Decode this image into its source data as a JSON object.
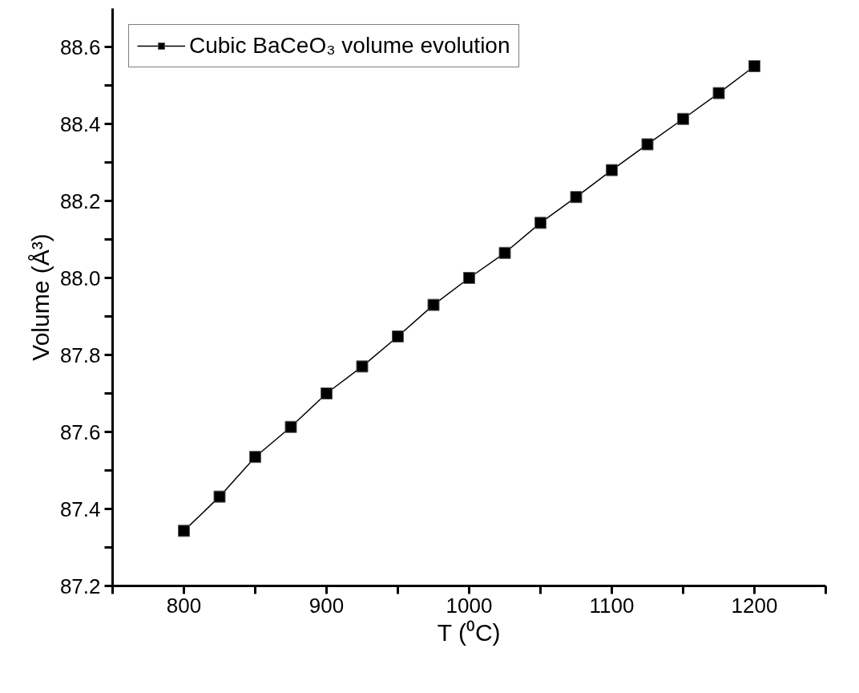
{
  "chart_data": {
    "type": "line",
    "xlabel": "T (⁰C)",
    "ylabel": "Volume (Å³)",
    "x": [
      800,
      825,
      850,
      875,
      900,
      925,
      950,
      975,
      1000,
      1025,
      1050,
      1075,
      1100,
      1125,
      1150,
      1175,
      1200
    ],
    "series": [
      {
        "name": "Cubic BaCeO₃ volume evolution",
        "color": "#000000",
        "values": [
          87.343,
          87.432,
          87.535,
          87.613,
          87.7,
          87.77,
          87.848,
          87.93,
          88.0,
          88.065,
          88.143,
          88.21,
          88.28,
          88.347,
          88.413,
          88.48,
          88.55
        ]
      }
    ],
    "xlim": [
      750,
      1250
    ],
    "xticks": [
      {
        "value": 750,
        "label": null
      },
      800,
      {
        "value": 850,
        "label": null
      },
      900,
      {
        "value": 950,
        "label": null
      },
      1000,
      {
        "value": 1050,
        "label": null
      },
      1100,
      {
        "value": 1150,
        "label": null
      },
      1200,
      {
        "value": 1250,
        "label": null
      }
    ],
    "ylim": [
      87.2,
      88.7
    ],
    "yticks": [
      87.2,
      {
        "value": 87.3,
        "label": null
      },
      87.4,
      {
        "value": 87.5,
        "label": null
      },
      87.6,
      {
        "value": 87.7,
        "label": null
      },
      87.8,
      {
        "value": 87.9,
        "label": null
      },
      {
        "value": 88.0,
        "label": "88.0"
      },
      {
        "value": 88.1,
        "label": null
      },
      88.2,
      {
        "value": 88.3,
        "label": null
      },
      88.4,
      {
        "value": 88.5,
        "label": null
      },
      88.6
    ],
    "marker": "square",
    "line_style": "solid",
    "grid": false,
    "legend": "top left"
  }
}
